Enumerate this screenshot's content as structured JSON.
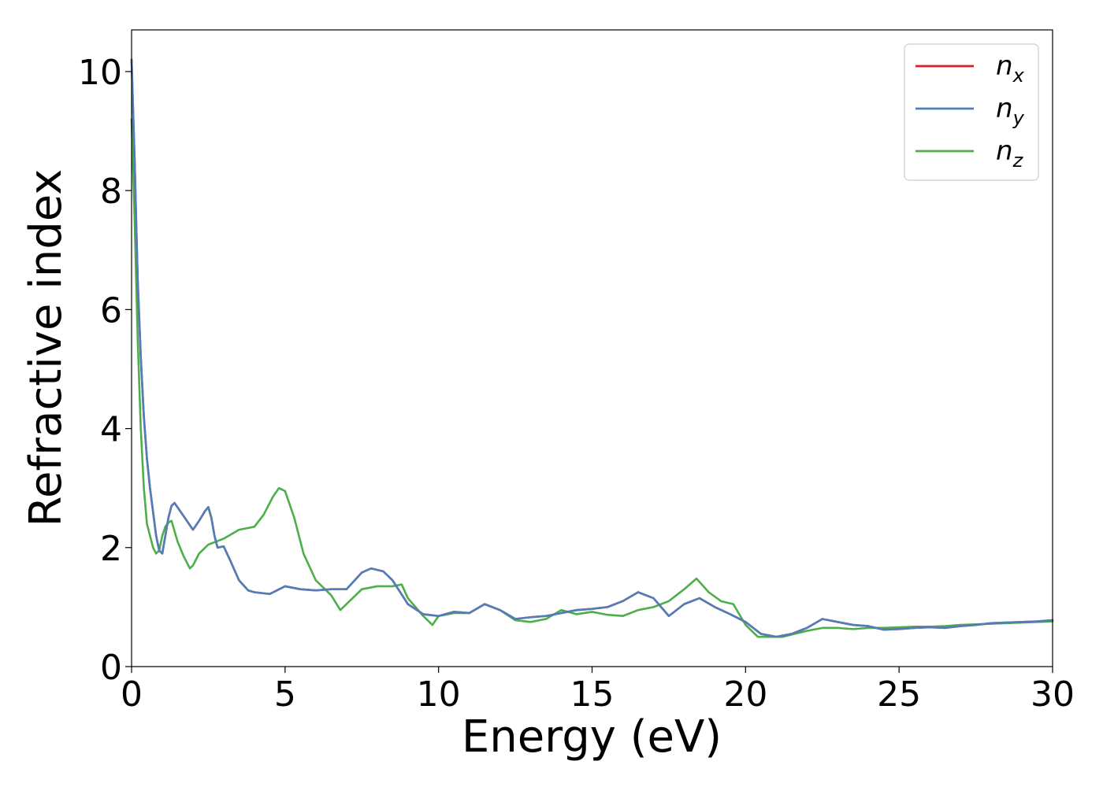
{
  "chart_data": {
    "type": "line",
    "xlabel": "Energy (eV)",
    "ylabel": "Refractive index",
    "xlim": [
      0,
      30
    ],
    "ylim": [
      0,
      10.7
    ],
    "xticks": [
      "0",
      "5",
      "10",
      "15",
      "20",
      "25",
      "30"
    ],
    "yticks": [
      "0",
      "2",
      "4",
      "6",
      "8",
      "10"
    ],
    "grid": false,
    "legend_position": "top-right",
    "series": [
      {
        "name": "n_x",
        "label_main": "n",
        "label_sub": "x",
        "color": "#e41a1c",
        "x": [
          0,
          0.1,
          0.2,
          0.3,
          0.4,
          0.5,
          0.6,
          0.7,
          0.8,
          0.9,
          1.0,
          1.1,
          1.2,
          1.3,
          1.4,
          1.6,
          1.8,
          2.0,
          2.2,
          2.4,
          2.5,
          2.6,
          2.7,
          2.8,
          3.0,
          3.2,
          3.5,
          3.8,
          4.0,
          4.5,
          5.0,
          5.5,
          6.0,
          6.5,
          7.0,
          7.5,
          7.8,
          8.2,
          8.5,
          9.0,
          9.5,
          10.0,
          10.5,
          11.0,
          11.5,
          12.0,
          12.5,
          13.0,
          13.5,
          14.0,
          14.5,
          15.0,
          15.5,
          16.0,
          16.5,
          17.0,
          17.5,
          18.0,
          18.5,
          19.0,
          19.5,
          20.0,
          20.5,
          21.0,
          21.5,
          22.0,
          22.5,
          23.0,
          23.5,
          24.0,
          24.5,
          25.0,
          25.5,
          26.0,
          26.5,
          27.0,
          27.5,
          28.0,
          28.5,
          29.0,
          29.5,
          30.0
        ],
        "values": [
          10.2,
          8.5,
          6.5,
          5.2,
          4.2,
          3.5,
          3.0,
          2.6,
          2.2,
          1.95,
          1.9,
          2.2,
          2.5,
          2.7,
          2.75,
          2.6,
          2.45,
          2.3,
          2.45,
          2.62,
          2.68,
          2.5,
          2.2,
          2.0,
          2.02,
          1.8,
          1.45,
          1.28,
          1.25,
          1.22,
          1.35,
          1.3,
          1.28,
          1.3,
          1.3,
          1.58,
          1.65,
          1.6,
          1.45,
          1.05,
          0.88,
          0.85,
          0.92,
          0.9,
          1.05,
          0.95,
          0.8,
          0.83,
          0.85,
          0.9,
          0.95,
          0.97,
          1.0,
          1.1,
          1.25,
          1.15,
          0.85,
          1.05,
          1.15,
          1.0,
          0.88,
          0.75,
          0.55,
          0.5,
          0.55,
          0.65,
          0.8,
          0.75,
          0.7,
          0.68,
          0.62,
          0.63,
          0.65,
          0.66,
          0.65,
          0.68,
          0.7,
          0.73,
          0.74,
          0.75,
          0.76,
          0.78
        ]
      },
      {
        "name": "n_y",
        "label_main": "n",
        "label_sub": "y",
        "color": "#4f7fbb",
        "x": [
          0,
          0.1,
          0.2,
          0.3,
          0.4,
          0.5,
          0.6,
          0.7,
          0.8,
          0.9,
          1.0,
          1.1,
          1.2,
          1.3,
          1.4,
          1.6,
          1.8,
          2.0,
          2.2,
          2.4,
          2.5,
          2.6,
          2.7,
          2.8,
          3.0,
          3.2,
          3.5,
          3.8,
          4.0,
          4.5,
          5.0,
          5.5,
          6.0,
          6.5,
          7.0,
          7.5,
          7.8,
          8.2,
          8.5,
          9.0,
          9.5,
          10.0,
          10.5,
          11.0,
          11.5,
          12.0,
          12.5,
          13.0,
          13.5,
          14.0,
          14.5,
          15.0,
          15.5,
          16.0,
          16.5,
          17.0,
          17.5,
          18.0,
          18.5,
          19.0,
          19.5,
          20.0,
          20.5,
          21.0,
          21.5,
          22.0,
          22.5,
          23.0,
          23.5,
          24.0,
          24.5,
          25.0,
          25.5,
          26.0,
          26.5,
          27.0,
          27.5,
          28.0,
          28.5,
          29.0,
          29.5,
          30.0
        ],
        "values": [
          10.2,
          8.5,
          6.5,
          5.2,
          4.2,
          3.5,
          3.0,
          2.6,
          2.2,
          1.95,
          1.9,
          2.2,
          2.5,
          2.7,
          2.75,
          2.6,
          2.45,
          2.3,
          2.45,
          2.62,
          2.68,
          2.5,
          2.2,
          2.0,
          2.02,
          1.8,
          1.45,
          1.28,
          1.25,
          1.22,
          1.35,
          1.3,
          1.28,
          1.3,
          1.3,
          1.58,
          1.65,
          1.6,
          1.45,
          1.05,
          0.88,
          0.85,
          0.92,
          0.9,
          1.05,
          0.95,
          0.8,
          0.83,
          0.85,
          0.9,
          0.95,
          0.97,
          1.0,
          1.1,
          1.25,
          1.15,
          0.85,
          1.05,
          1.15,
          1.0,
          0.88,
          0.75,
          0.55,
          0.5,
          0.55,
          0.65,
          0.8,
          0.75,
          0.7,
          0.68,
          0.62,
          0.63,
          0.65,
          0.66,
          0.65,
          0.68,
          0.7,
          0.73,
          0.74,
          0.75,
          0.76,
          0.78
        ]
      },
      {
        "name": "n_z",
        "label_main": "n",
        "label_sub": "z",
        "color": "#4daf4a",
        "x": [
          0,
          0.1,
          0.2,
          0.3,
          0.4,
          0.5,
          0.6,
          0.7,
          0.8,
          0.9,
          1.0,
          1.1,
          1.2,
          1.3,
          1.5,
          1.7,
          1.9,
          2.0,
          2.2,
          2.5,
          3.0,
          3.5,
          4.0,
          4.3,
          4.6,
          4.8,
          5.0,
          5.3,
          5.6,
          6.0,
          6.5,
          6.8,
          7.0,
          7.5,
          8.0,
          8.5,
          8.8,
          9.0,
          9.5,
          9.8,
          10.0,
          10.5,
          11.0,
          11.5,
          12.0,
          12.5,
          13.0,
          13.5,
          14.0,
          14.5,
          15.0,
          15.5,
          16.0,
          16.5,
          17.0,
          17.5,
          18.0,
          18.4,
          18.8,
          19.2,
          19.6,
          20.0,
          20.4,
          20.8,
          21.2,
          21.6,
          22.0,
          22.5,
          23.0,
          23.5,
          24.0,
          24.5,
          25.0,
          25.5,
          26.0,
          26.5,
          27.0,
          27.5,
          28.0,
          28.5,
          29.0,
          29.5,
          30.0
        ],
        "values": [
          9.2,
          7.5,
          5.5,
          4.0,
          3.0,
          2.4,
          2.2,
          2.0,
          1.9,
          1.95,
          2.2,
          2.35,
          2.42,
          2.45,
          2.1,
          1.85,
          1.65,
          1.7,
          1.9,
          2.05,
          2.15,
          2.3,
          2.35,
          2.55,
          2.85,
          3.0,
          2.95,
          2.5,
          1.9,
          1.45,
          1.2,
          0.95,
          1.05,
          1.3,
          1.35,
          1.35,
          1.38,
          1.15,
          0.85,
          0.7,
          0.85,
          0.9,
          0.9,
          1.05,
          0.95,
          0.78,
          0.75,
          0.8,
          0.95,
          0.88,
          0.92,
          0.87,
          0.85,
          0.95,
          1.0,
          1.1,
          1.3,
          1.48,
          1.25,
          1.1,
          1.05,
          0.7,
          0.5,
          0.5,
          0.5,
          0.55,
          0.6,
          0.65,
          0.65,
          0.63,
          0.65,
          0.65,
          0.66,
          0.67,
          0.67,
          0.68,
          0.7,
          0.71,
          0.72,
          0.73,
          0.74,
          0.75,
          0.76
        ]
      }
    ]
  }
}
